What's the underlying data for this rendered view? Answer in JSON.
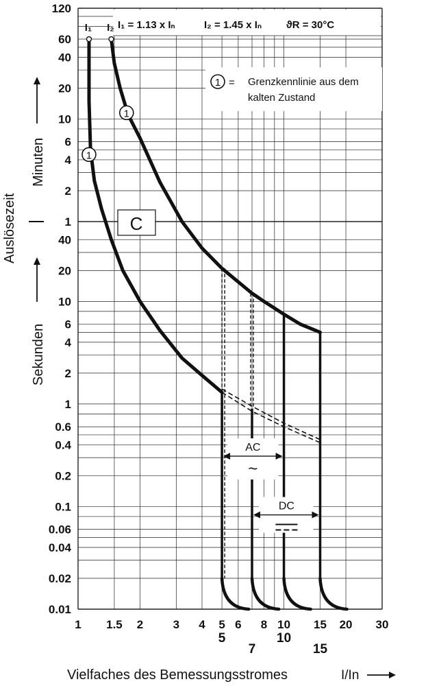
{
  "chart_data": {
    "type": "line",
    "title": "",
    "xlabel": "Vielfaches des Bemessungsstromes",
    "xlabel_unit": "I/In",
    "ylabel": "Auslösezeit",
    "y_unit_upper": "Minuten",
    "y_unit_lower": "Sekunden",
    "x_scale": "log",
    "y_scale": "log",
    "xlim": [
      1,
      30
    ],
    "ylim_seconds": [
      0.01,
      7200
    ],
    "grid": true,
    "x_tick_labels": [
      "1",
      "1.5",
      "2",
      "3",
      "4",
      "5",
      "6",
      "8",
      "10",
      "15",
      "20",
      "30"
    ],
    "x_ticks": [
      1,
      1.5,
      2,
      3,
      4,
      5,
      6,
      8,
      10,
      15,
      20,
      30
    ],
    "x_bold_tick_labels": [
      "5",
      "7",
      "10",
      "15"
    ],
    "x_bold_ticks": [
      5,
      7,
      10,
      15
    ],
    "y_tick_labels_minutes": [
      "120",
      "60",
      "40",
      "20",
      "10",
      "6",
      "4",
      "2",
      "1"
    ],
    "y_ticks_minutes": [
      120,
      60,
      40,
      20,
      10,
      6,
      4,
      2,
      1
    ],
    "y_tick_labels_seconds": [
      "40",
      "20",
      "10",
      "6",
      "4",
      "2",
      "1",
      "0.6",
      "0.4",
      "0.2",
      "0.1",
      "0.06",
      "0.04",
      "0.02",
      "0.01"
    ],
    "y_ticks_seconds": [
      40,
      20,
      10,
      6,
      4,
      2,
      1,
      0.6,
      0.4,
      0.2,
      0.1,
      0.06,
      0.04,
      0.02,
      0.01
    ],
    "equation_i1": "I₁ = 1.13 x Iₙ",
    "equation_i2": "I₂ = 1.45 x Iₙ",
    "equation_temp": "ϑR = 30°C",
    "marker_i1": "I₁",
    "marker_i2": "I₂",
    "circle_label": "1",
    "circle_legend_eq": "=",
    "circle_legend_line1": "Grenzkennlinie aus dem",
    "circle_legend_line2": "kalten Zustand",
    "region_label": "C",
    "ac_label": "AC",
    "ac_symbol": "~",
    "dc_label": "DC",
    "series": [
      {
        "name": "",
        "role": "lower limit curve (I1)",
        "x_in": [
          1.13,
          1.13,
          1.15,
          1.2,
          1.3,
          1.45,
          1.65,
          2.0,
          2.5,
          3.2,
          4.0,
          5.0
        ],
        "y_seconds": [
          3600,
          900,
          300,
          150,
          80,
          40,
          20,
          10,
          5.2,
          2.8,
          1.9,
          1.3
        ]
      },
      {
        "name": "",
        "role": "upper limit curve (I2)",
        "x_in": [
          1.45,
          1.5,
          1.6,
          1.75,
          2.0,
          2.5,
          3.2,
          4.0,
          5.0,
          6.0,
          7.0,
          8.0,
          10.0,
          12.0,
          15.0
        ],
        "y_seconds": [
          3600,
          2100,
          1200,
          660,
          390,
          145,
          60,
          33,
          21,
          15.5,
          12,
          10,
          7.5,
          6,
          5
        ]
      },
      {
        "name": "",
        "role": "lower curve extension (dashed)",
        "x_in": [
          5,
          7,
          10,
          15
        ],
        "y_seconds": [
          1.3,
          0.85,
          0.6,
          0.42
        ]
      },
      {
        "name": "",
        "role": "upper curve extension (dashed)",
        "x_in": [
          5,
          7,
          10,
          15
        ],
        "y_seconds": [
          1.4,
          0.95,
          0.65,
          0.45
        ]
      }
    ],
    "instantaneous_trip_multiples": [
      5,
      7,
      10,
      15
    ],
    "trip_tail_end_seconds": 0.01,
    "ac_range_in": [
      5,
      10
    ],
    "dc_range_in": [
      7,
      15
    ],
    "curve_marker_points": [
      {
        "x_in": 1.13,
        "y_seconds": 270
      },
      {
        "x_in": 1.72,
        "y_seconds": 690
      }
    ]
  }
}
